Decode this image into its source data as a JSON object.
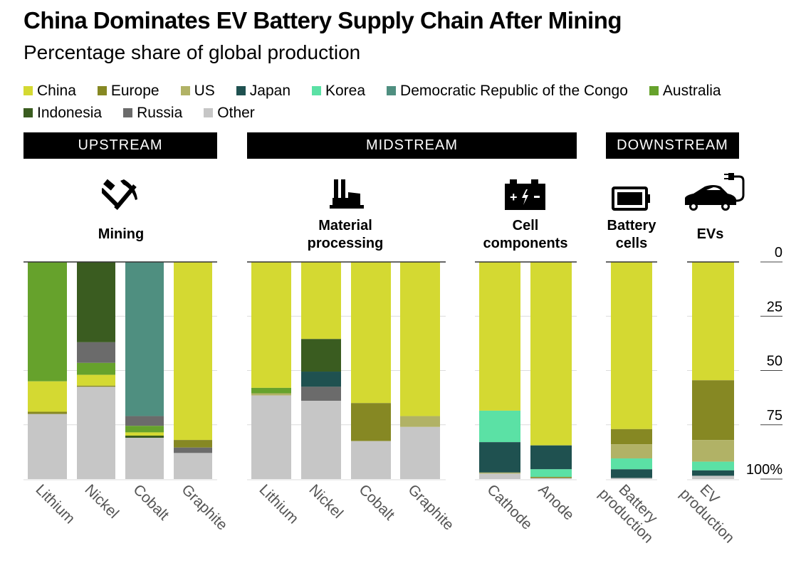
{
  "title": "China Dominates EV Battery Supply Chain After Mining",
  "subtitle": "Percentage share of global production",
  "legend": {
    "row1": [
      {
        "name": "China",
        "color": "#d4d932"
      },
      {
        "name": "Europe",
        "color": "#868823"
      },
      {
        "name": "US",
        "color": "#b1b266"
      },
      {
        "name": "Japan",
        "color": "#1f5150"
      },
      {
        "name": "Korea",
        "color": "#5be1a5"
      },
      {
        "name": "Democratic Republic of the Congo",
        "color": "#4f8f80"
      },
      {
        "name": "Australia",
        "color": "#66a22c"
      }
    ],
    "row2": [
      {
        "name": "Indonesia",
        "color": "#3a5c20"
      },
      {
        "name": "Russia",
        "color": "#6b6b6b"
      },
      {
        "name": "Other",
        "color": "#c6c6c6"
      }
    ]
  },
  "stages": {
    "upstream": "UPSTREAM",
    "midstream": "MIDSTREAM",
    "downstream": "DOWNSTREAM"
  },
  "groups": {
    "mining": {
      "line1": "Mining",
      "line2": "",
      "icon": "hammer-pickaxe-icon"
    },
    "processing": {
      "line1": "Material",
      "line2": "processing",
      "icon": "factory-icon"
    },
    "components": {
      "line1": "Cell",
      "line2": "components",
      "icon": "car-battery-icon"
    },
    "cells": {
      "line1": "Battery",
      "line2": "cells",
      "icon": "battery-icon"
    },
    "evs": {
      "line1": "EVs",
      "line2": "",
      "icon": "electric-car-icon"
    }
  },
  "chart_data": {
    "type": "bar",
    "stacked": true,
    "title": "China Dominates EV Battery Supply Chain After Mining",
    "subtitle": "Percentage share of global production",
    "ylabel": "",
    "ylim": [
      0,
      100
    ],
    "y_inverted": true,
    "y_ticks": [
      "0",
      "25",
      "50",
      "75",
      "100%"
    ],
    "y_tick_values": [
      0,
      25,
      50,
      75,
      100
    ],
    "legend_position": "top",
    "grid": true,
    "series_colors": {
      "China": "#d4d932",
      "Europe": "#868823",
      "US": "#b1b266",
      "Japan": "#1f5150",
      "Korea": "#5be1a5",
      "Democratic Republic of the Congo": "#4f8f80",
      "Australia": "#66a22c",
      "Indonesia": "#3a5c20",
      "Russia": "#6b6b6b",
      "Other": "#c6c6c6"
    },
    "groups": [
      {
        "name": "Mining",
        "stage": "UPSTREAM",
        "bars": [
          {
            "category": "Lithium",
            "label": [
              "Lithium"
            ],
            "segments": [
              {
                "series": "Australia",
                "value": 55
              },
              {
                "series": "China",
                "value": 14
              },
              {
                "series": "Europe",
                "value": 1
              },
              {
                "series": "Other",
                "value": 30
              }
            ]
          },
          {
            "category": "Nickel",
            "label": [
              "Nickel"
            ],
            "segments": [
              {
                "series": "Indonesia",
                "value": 37
              },
              {
                "series": "Russia",
                "value": 9.5
              },
              {
                "series": "Australia",
                "value": 5.5
              },
              {
                "series": "China",
                "value": 5
              },
              {
                "series": "Europe",
                "value": 0.5
              },
              {
                "series": "Other",
                "value": 42.5
              }
            ]
          },
          {
            "category": "Cobalt",
            "label": [
              "Cobalt"
            ],
            "segments": [
              {
                "series": "Democratic Republic of the Congo",
                "value": 71
              },
              {
                "series": "Russia",
                "value": 4.5
              },
              {
                "series": "Australia",
                "value": 3
              },
              {
                "series": "China",
                "value": 1.5
              },
              {
                "series": "Indonesia",
                "value": 1
              },
              {
                "series": "Other",
                "value": 19
              }
            ]
          },
          {
            "category": "Graphite",
            "label": [
              "Graphite"
            ],
            "segments": [
              {
                "series": "China",
                "value": 82
              },
              {
                "series": "Europe",
                "value": 3.5
              },
              {
                "series": "Russia",
                "value": 2.5
              },
              {
                "series": "Other",
                "value": 12
              }
            ]
          }
        ]
      },
      {
        "name": "Material processing",
        "stage": "MIDSTREAM",
        "bars": [
          {
            "category": "Lithium",
            "label": [
              "Lithium"
            ],
            "segments": [
              {
                "series": "China",
                "value": 58
              },
              {
                "series": "Australia",
                "value": 2.5
              },
              {
                "series": "US",
                "value": 1
              },
              {
                "series": "Other",
                "value": 38.5
              }
            ]
          },
          {
            "category": "Nickel",
            "label": [
              "Nickel"
            ],
            "segments": [
              {
                "series": "China",
                "value": 35.5
              },
              {
                "series": "Indonesia",
                "value": 15
              },
              {
                "series": "Japan",
                "value": 7
              },
              {
                "series": "Russia",
                "value": 6.5
              },
              {
                "series": "Other",
                "value": 36
              }
            ]
          },
          {
            "category": "Cobalt",
            "label": [
              "Cobalt"
            ],
            "segments": [
              {
                "series": "China",
                "value": 65
              },
              {
                "series": "Europe",
                "value": 17.5
              },
              {
                "series": "Other",
                "value": 17.5
              }
            ]
          },
          {
            "category": "Graphite",
            "label": [
              "Graphite"
            ],
            "segments": [
              {
                "series": "China",
                "value": 71
              },
              {
                "series": "US",
                "value": 5
              },
              {
                "series": "Other",
                "value": 24
              }
            ]
          }
        ]
      },
      {
        "name": "Cell components",
        "stage": "MIDSTREAM",
        "bars": [
          {
            "category": "Cathode",
            "label": [
              "Cathode"
            ],
            "segments": [
              {
                "series": "China",
                "value": 68.5
              },
              {
                "series": "Korea",
                "value": 14.5
              },
              {
                "series": "Japan",
                "value": 14
              },
              {
                "series": "US",
                "value": 0.5
              },
              {
                "series": "Other",
                "value": 2.5
              }
            ]
          },
          {
            "category": "Anode",
            "label": [
              "Anode"
            ],
            "segments": [
              {
                "series": "China",
                "value": 84.5
              },
              {
                "series": "Japan",
                "value": 11
              },
              {
                "series": "Korea",
                "value": 3.5
              },
              {
                "series": "Europe",
                "value": 0.5
              },
              {
                "series": "Other",
                "value": 0.5
              }
            ]
          }
        ]
      },
      {
        "name": "Battery cells",
        "stage": "DOWNSTREAM",
        "bars": [
          {
            "category": "Battery production",
            "label": [
              "Battery",
              "production"
            ],
            "segments": [
              {
                "series": "China",
                "value": 77
              },
              {
                "series": "Europe",
                "value": 7
              },
              {
                "series": "US",
                "value": 6.5
              },
              {
                "series": "Korea",
                "value": 5
              },
              {
                "series": "Japan",
                "value": 4
              },
              {
                "series": "Other",
                "value": 0.5
              }
            ]
          }
        ]
      },
      {
        "name": "EVs",
        "stage": "DOWNSTREAM",
        "bars": [
          {
            "category": "EV production",
            "label": [
              "EV",
              "production"
            ],
            "segments": [
              {
                "series": "China",
                "value": 54.5
              },
              {
                "series": "Europe",
                "value": 27.5
              },
              {
                "series": "US",
                "value": 10
              },
              {
                "series": "Korea",
                "value": 4
              },
              {
                "series": "Japan",
                "value": 2.5
              },
              {
                "series": "Other",
                "value": 1.5
              }
            ]
          }
        ]
      }
    ]
  }
}
